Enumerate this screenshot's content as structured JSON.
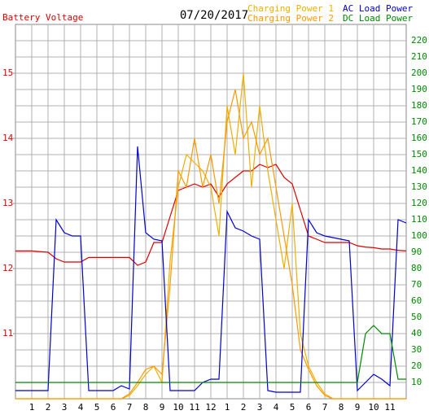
{
  "chart_data": {
    "type": "line",
    "date": "07/20/2017",
    "xlim": [
      0,
      24
    ],
    "xticks": [
      1,
      2,
      3,
      4,
      5,
      6,
      7,
      8,
      9,
      10,
      11,
      12,
      {
        "value": 13,
        "label": "1"
      },
      {
        "value": 14,
        "label": "2"
      },
      {
        "value": 15,
        "label": "3"
      },
      {
        "value": 16,
        "label": "4"
      },
      {
        "value": 17,
        "label": "5"
      },
      {
        "value": 18,
        "label": "6"
      },
      {
        "value": 19,
        "label": "7"
      },
      {
        "value": 20,
        "label": "8"
      },
      {
        "value": 21,
        "label": "9"
      },
      {
        "value": 22,
        "label": "10"
      },
      {
        "value": 23,
        "label": "11"
      }
    ],
    "ylim": [
      10,
      15.75
    ],
    "yticks": [
      11,
      12,
      13,
      14,
      15
    ],
    "y2lim": [
      0,
      230
    ],
    "y2ticks": [
      10,
      20,
      30,
      40,
      50,
      60,
      70,
      80,
      90,
      100,
      110,
      120,
      130,
      140,
      150,
      160,
      170,
      180,
      190,
      200,
      210,
      220
    ],
    "grid": true,
    "x": [
      0,
      0.5,
      1,
      1.5,
      2,
      2.5,
      3,
      3.5,
      4,
      4.5,
      5,
      5.5,
      6,
      6.5,
      7,
      7.5,
      8,
      8.5,
      9,
      9.5,
      10,
      10.5,
      11,
      11.5,
      12,
      12.5,
      13,
      13.5,
      14,
      14.5,
      15,
      15.5,
      16,
      16.5,
      17,
      17.5,
      18,
      18.5,
      19,
      19.5,
      20,
      20.5,
      21,
      21.5,
      22,
      22.5,
      23,
      23.5,
      24
    ],
    "series": [
      {
        "name": "Battery Voltage",
        "color": "#dd0000",
        "axis": "y",
        "values": [
          12.27,
          12.27,
          12.27,
          12.26,
          12.25,
          12.15,
          12.1,
          12.1,
          12.1,
          12.17,
          12.17,
          12.17,
          12.17,
          12.17,
          12.17,
          12.05,
          12.1,
          12.4,
          12.4,
          12.8,
          13.2,
          13.25,
          13.3,
          13.25,
          13.3,
          13.1,
          13.3,
          13.4,
          13.5,
          13.5,
          13.6,
          13.55,
          13.6,
          13.4,
          13.3,
          12.9,
          12.5,
          12.45,
          12.4,
          12.4,
          12.4,
          12.4,
          12.35,
          12.33,
          12.32,
          12.3,
          12.3,
          12.28,
          12.27
        ]
      },
      {
        "name": "Charging Power 1",
        "color": "#f0b000",
        "axis": "y2",
        "values": [
          0,
          0,
          0,
          0,
          0,
          0,
          0,
          0,
          0,
          0,
          0,
          0,
          0,
          0,
          2,
          8,
          15,
          20,
          10,
          85,
          130,
          150,
          145,
          140,
          130,
          100,
          180,
          150,
          200,
          130,
          180,
          140,
          110,
          80,
          120,
          40,
          20,
          10,
          3,
          0,
          0,
          0,
          0,
          0,
          0,
          0,
          0,
          0,
          0
        ]
      },
      {
        "name": "Charging Power 2",
        "color": "#ff9900",
        "axis": "y2",
        "values": [
          0,
          0,
          0,
          0,
          0,
          0,
          0,
          0,
          0,
          0,
          0,
          0,
          0,
          0,
          3,
          10,
          18,
          20,
          15,
          70,
          140,
          130,
          160,
          130,
          150,
          120,
          170,
          190,
          160,
          170,
          150,
          160,
          130,
          100,
          70,
          30,
          18,
          8,
          2,
          0,
          0,
          0,
          0,
          0,
          0,
          0,
          0,
          0,
          0
        ]
      },
      {
        "name": "AC Load Power",
        "color": "#0000cc",
        "axis": "y2",
        "values": [
          5,
          5,
          5,
          5,
          5,
          110,
          102,
          100,
          100,
          5,
          5,
          5,
          5,
          8,
          6,
          155,
          102,
          98,
          97,
          5,
          5,
          5,
          5,
          10,
          12,
          12,
          115,
          105,
          103,
          100,
          98,
          5,
          4,
          4,
          4,
          4,
          110,
          102,
          100,
          99,
          98,
          97,
          5,
          10,
          15,
          12,
          8,
          110,
          108
        ]
      },
      {
        "name": "DC Load Power",
        "color": "#008800",
        "axis": "y2",
        "values": [
          10,
          10,
          10,
          10,
          10,
          10,
          10,
          10,
          10,
          10,
          10,
          10,
          10,
          10,
          10,
          10,
          10,
          10,
          10,
          10,
          10,
          10,
          10,
          10,
          10,
          10,
          10,
          10,
          10,
          10,
          10,
          10,
          10,
          10,
          10,
          10,
          10,
          10,
          10,
          10,
          10,
          10,
          10,
          40,
          45,
          40,
          40,
          12,
          12
        ]
      }
    ]
  }
}
